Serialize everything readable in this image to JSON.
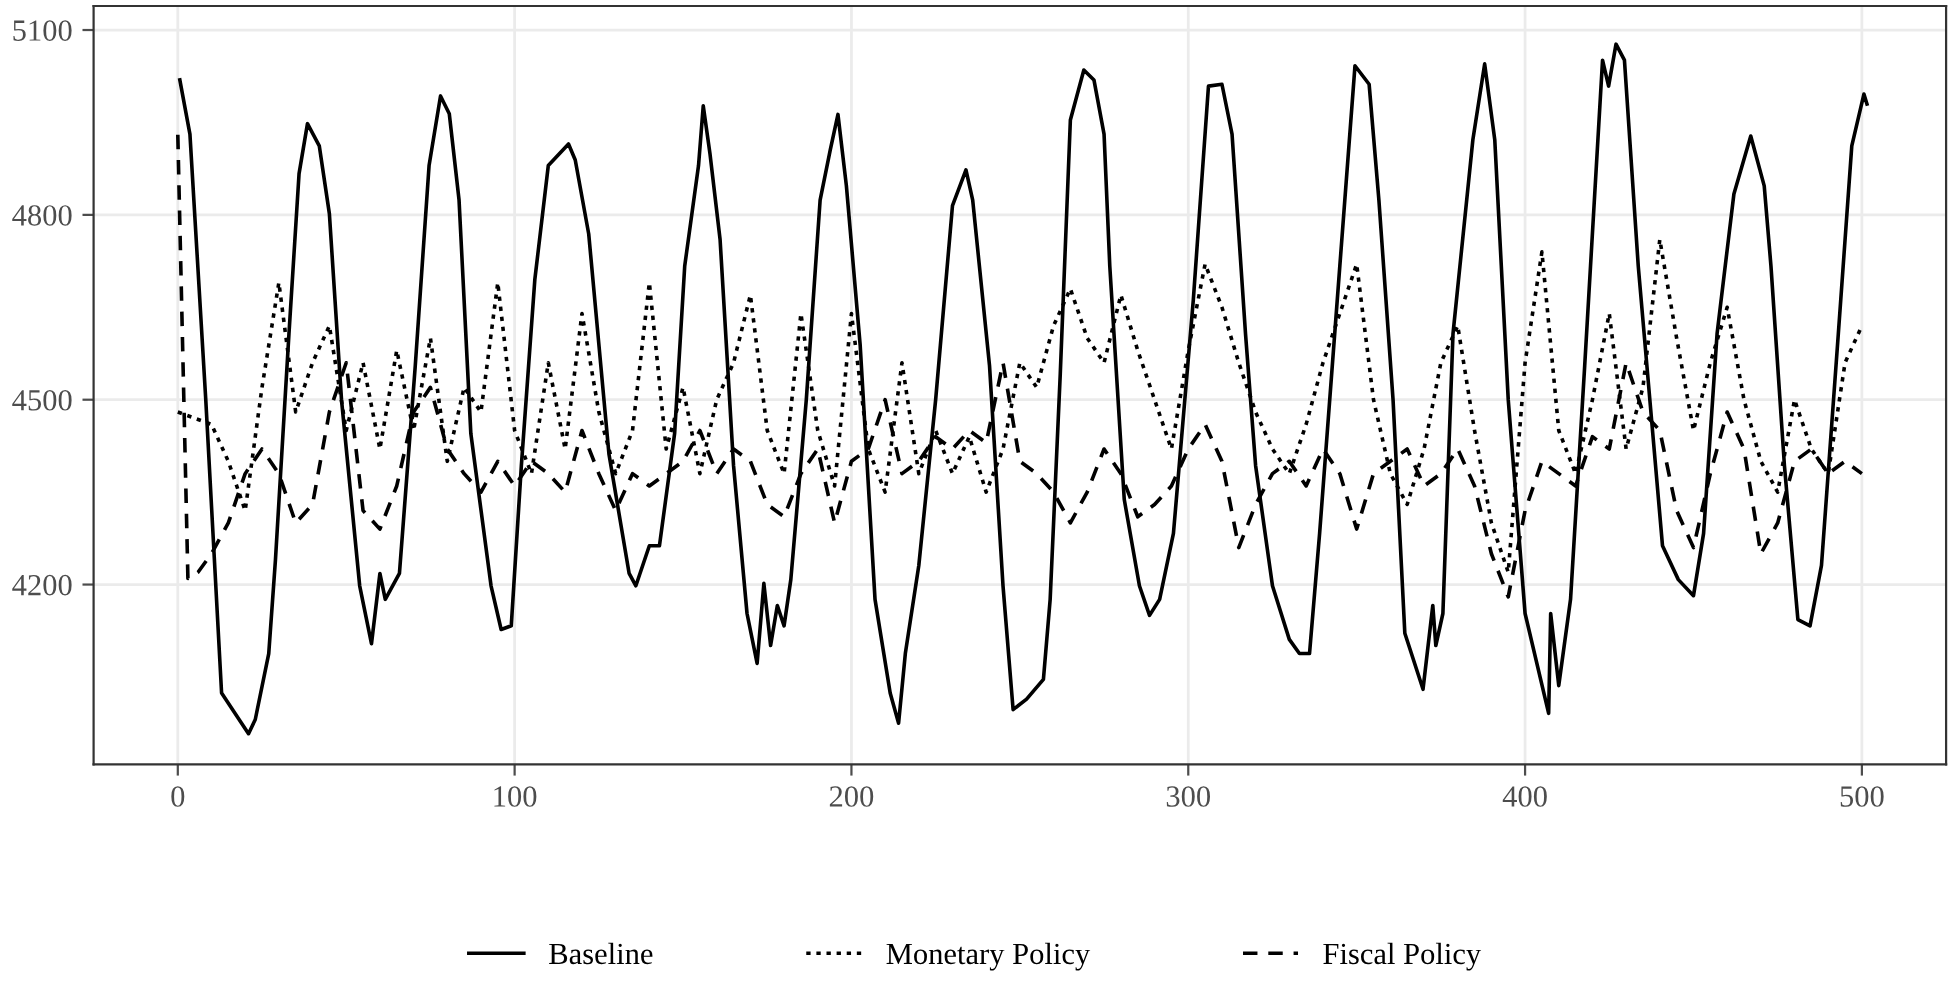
{
  "chart_data": {
    "type": "line",
    "xlim": [
      -25,
      525
    ],
    "xticks": [
      0,
      100,
      200,
      300,
      400,
      500
    ],
    "ylim": [
      3908,
      5139
    ],
    "yticks": [
      4200,
      4500,
      4800,
      5100
    ],
    "grid": true,
    "legend": "bottom",
    "series": [
      {
        "name": "Baseline",
        "color": "#000000",
        "line_style": "solid",
        "x": [
          0.6,
          3.6,
          8.3,
          13,
          15.4,
          21,
          23,
          27,
          29,
          33,
          36,
          38.5,
          42,
          45,
          48.6,
          54,
          57.5,
          60,
          61.6,
          65.8,
          70.5,
          74.6,
          78,
          80.6,
          83.5,
          87,
          93,
          96,
          99,
          102,
          106,
          110,
          116,
          118,
          122,
          128,
          134,
          136,
          140,
          143,
          147.5,
          150.5,
          154.6,
          156,
          158,
          161,
          165,
          169,
          172,
          174,
          176,
          178,
          180,
          182,
          186.6,
          190.7,
          193.7,
          196,
          198.5,
          202.6,
          207,
          211.5,
          214,
          216,
          220,
          225,
          230,
          234,
          236,
          241,
          245,
          248,
          252,
          257,
          259,
          262,
          265,
          269,
          272,
          275,
          276.7,
          281,
          285.5,
          288.5,
          291.5,
          295.6,
          301.5,
          306,
          310,
          313,
          317,
          320,
          325,
          330,
          333,
          336,
          339,
          345,
          349.5,
          353.7,
          356.6,
          360.8,
          364.3,
          369.7,
          372.6,
          373.5,
          375.6,
          378.6,
          384.5,
          388,
          391,
          395,
          400,
          407,
          407.6,
          410,
          413.5,
          417.7,
          423,
          424.8,
          427,
          429.5,
          433.6,
          440.8,
          445.5,
          450,
          453,
          457,
          462,
          467,
          471,
          473,
          477,
          481,
          484.6,
          488,
          493,
          497,
          500.6,
          501.5
        ],
        "values": [
          5019,
          4931,
          4500,
          4024,
          4004,
          3958,
          3981,
          4088,
          4241,
          4607,
          4867,
          4948,
          4912,
          4802,
          4500,
          4198,
          4104,
          4218,
          4176,
          4218,
          4555,
          4880,
          4993,
          4964,
          4824,
          4445,
          4198,
          4127,
          4133,
          4393,
          4695,
          4880,
          4915,
          4889,
          4769,
          4412,
          4218,
          4198,
          4263,
          4263,
          4445,
          4717,
          4880,
          4977,
          4899,
          4760,
          4393,
          4153,
          4072,
          4202,
          4101,
          4166,
          4133,
          4208,
          4500,
          4824,
          4905,
          4963,
          4847,
          4588,
          4176,
          4024,
          3975,
          4088,
          4231,
          4500,
          4815,
          4873,
          4824,
          4555,
          4198,
          3997,
          4014,
          4046,
          4176,
          4542,
          4954,
          5035,
          5019,
          4931,
          4717,
          4338,
          4198,
          4150,
          4176,
          4283,
          4662,
          5009,
          5012,
          4931,
          4607,
          4393,
          4198,
          4111,
          4088,
          4088,
          4283,
          4717,
          5042,
          5012,
          4824,
          4500,
          4121,
          4030,
          4166,
          4101,
          4153,
          4607,
          4922,
          5045,
          4922,
          4500,
          4153,
          3991,
          4153,
          4036,
          4176,
          4555,
          5051,
          5009,
          5077,
          5051,
          4717,
          4263,
          4208,
          4182,
          4283,
          4607,
          4834,
          4928,
          4847,
          4717,
          4393,
          4143,
          4133,
          4231,
          4607,
          4912,
          4996,
          4980
        ]
      },
      {
        "name": "Monetary Policy",
        "color": "#000000",
        "line_style": "dotted",
        "x": [
          0,
          5,
          10,
          15,
          20,
          25,
          30,
          35,
          40,
          45,
          50,
          55,
          60,
          65,
          70,
          75,
          80,
          85,
          90,
          95,
          100,
          105,
          110,
          115,
          120,
          125,
          130,
          135,
          140,
          145,
          150,
          155,
          160,
          165,
          170,
          175,
          180,
          185,
          190,
          195,
          200,
          205,
          210,
          215,
          220,
          225,
          230,
          235,
          240,
          245,
          250,
          255,
          260,
          265,
          270,
          275,
          280,
          285,
          290,
          295,
          300,
          305,
          310,
          315,
          320,
          325,
          330,
          335,
          340,
          345,
          350,
          355,
          360,
          365,
          370,
          375,
          380,
          385,
          390,
          395,
          400,
          405,
          410,
          415,
          420,
          425,
          430,
          435,
          440,
          445,
          450,
          455,
          460,
          465,
          470,
          475,
          480,
          485,
          490,
          495,
          500
        ],
        "values": [
          4480,
          4470,
          4460,
          4400,
          4320,
          4520,
          4690,
          4480,
          4560,
          4620,
          4450,
          4560,
          4420,
          4580,
          4450,
          4600,
          4400,
          4520,
          4480,
          4690,
          4450,
          4380,
          4560,
          4420,
          4640,
          4480,
          4380,
          4450,
          4690,
          4420,
          4520,
          4380,
          4500,
          4560,
          4670,
          4450,
          4380,
          4640,
          4450,
          4360,
          4640,
          4420,
          4350,
          4560,
          4380,
          4450,
          4380,
          4440,
          4350,
          4420,
          4560,
          4520,
          4620,
          4680,
          4600,
          4560,
          4670,
          4580,
          4500,
          4420,
          4580,
          4720,
          4650,
          4560,
          4480,
          4420,
          4380,
          4460,
          4560,
          4640,
          4720,
          4500,
          4380,
          4330,
          4420,
          4560,
          4620,
          4450,
          4300,
          4220,
          4560,
          4740,
          4450,
          4380,
          4500,
          4640,
          4420,
          4520,
          4760,
          4600,
          4450,
          4560,
          4650,
          4500,
          4400,
          4350,
          4500,
          4420,
          4380,
          4560,
          4620
        ]
      },
      {
        "name": "Fiscal Policy",
        "color": "#000000",
        "line_style": "dashed",
        "x": [
          0,
          3,
          6,
          10,
          15,
          20,
          25,
          30,
          35,
          40,
          45,
          50,
          55,
          60,
          65,
          70,
          75,
          80,
          85,
          90,
          95,
          100,
          105,
          110,
          115,
          120,
          125,
          130,
          135,
          140,
          145,
          150,
          155,
          160,
          165,
          170,
          175,
          180,
          185,
          190,
          195,
          200,
          205,
          210,
          215,
          220,
          225,
          230,
          235,
          240,
          245,
          250,
          255,
          260,
          265,
          270,
          275,
          280,
          285,
          290,
          295,
          300,
          305,
          310,
          315,
          320,
          325,
          330,
          335,
          340,
          345,
          350,
          355,
          360,
          365,
          370,
          375,
          380,
          385,
          390,
          395,
          400,
          405,
          410,
          415,
          420,
          425,
          430,
          435,
          440,
          445,
          450,
          455,
          460,
          465,
          470,
          475,
          480,
          485,
          490,
          495,
          500
        ],
        "values": [
          4930,
          4210,
          4220,
          4250,
          4300,
          4380,
          4420,
          4380,
          4300,
          4330,
          4480,
          4560,
          4320,
          4290,
          4360,
          4480,
          4520,
          4420,
          4380,
          4350,
          4400,
          4360,
          4400,
          4380,
          4350,
          4450,
          4380,
          4320,
          4380,
          4360,
          4380,
          4400,
          4450,
          4380,
          4420,
          4400,
          4330,
          4310,
          4380,
          4420,
          4300,
          4400,
          4420,
          4500,
          4380,
          4400,
          4440,
          4420,
          4450,
          4430,
          4560,
          4400,
          4380,
          4350,
          4300,
          4350,
          4420,
          4380,
          4310,
          4330,
          4360,
          4420,
          4460,
          4400,
          4260,
          4330,
          4380,
          4400,
          4360,
          4420,
          4380,
          4290,
          4380,
          4400,
          4420,
          4360,
          4380,
          4420,
          4360,
          4250,
          4180,
          4320,
          4400,
          4380,
          4360,
          4440,
          4420,
          4560,
          4480,
          4450,
          4320,
          4260,
          4380,
          4480,
          4420,
          4250,
          4300,
          4400,
          4420,
          4380,
          4400,
          4380
        ]
      }
    ]
  }
}
